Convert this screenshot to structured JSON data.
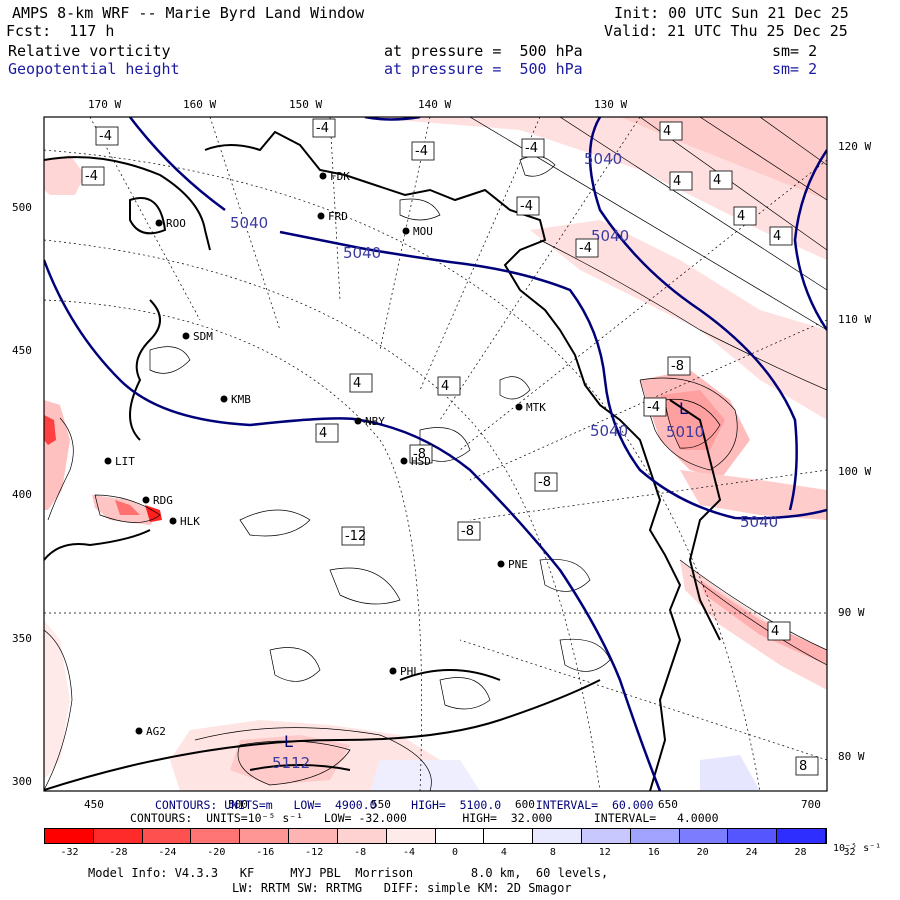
{
  "header": {
    "title": "AMPS 8-km WRF -- Marie Byrd Land Window",
    "init": "Init: 00 UTC Sun 21 Dec 25",
    "fcst": "Fcst:  117 h",
    "valid": "Valid: 21 UTC Thu 25 Dec 25",
    "field1_name": "Relative vorticity",
    "field1_level": "at pressure =  500 hPa",
    "field1_sm": "sm= 2",
    "field2_name": "Geopotential height",
    "field2_level": "at pressure =  500 hPa",
    "field2_sm": "sm= 2"
  },
  "map": {
    "lon_labels_top": [
      "170 W",
      "160 W",
      "150 W",
      "140 W",
      "130 W"
    ],
    "lon_labels_right": [
      "120 W",
      "110 W",
      "100 W",
      "90 W",
      "80 W"
    ],
    "y_ticks": [
      "500",
      "450",
      "400",
      "350",
      "300"
    ],
    "x_ticks": [
      "450",
      "500",
      "550",
      "600",
      "650",
      "700"
    ],
    "stations": [
      "ROO",
      "FDK",
      "FRD",
      "MOU",
      "SDM",
      "KMB",
      "NBY",
      "MTK",
      "HSD",
      "LIT",
      "RDG",
      "HLK",
      "PNE",
      "PHL",
      "AG2"
    ],
    "height_labels": [
      "5040",
      "5040",
      "5040",
      "5040",
      "5040",
      "5040",
      "5010",
      "5112"
    ],
    "low_label": "L",
    "vorticity_labels": [
      "-4",
      "-4",
      "-4",
      "-4",
      "-4",
      "-4",
      "-4",
      "4",
      "4",
      "4",
      "4",
      "4",
      "4",
      "4",
      "4",
      "-8",
      "-8",
      "-12",
      "-8",
      "-8",
      "-4",
      "4",
      "8"
    ]
  },
  "footer": {
    "contours1": "CONTOURS: UNITS=m   LOW=  4900.0     HIGH=  5100.0     INTERVAL=  60.000",
    "contours2": "CONTOURS:  UNITS=10⁻⁵ s⁻¹   LOW= -32.000        HIGH=  32.000      INTERVAL=   4.0000",
    "model1": "Model Info: V4.3.3   KF     MYJ PBL  Morrison        8.0 km,  60 levels,",
    "model2": "LW: RRTM SW: RRTMG   DIFF: simple KM: 2D Smagor"
  },
  "colorbar": {
    "labels": [
      "-32",
      "-28",
      "-24",
      "-20",
      "-16",
      "-12",
      "-8",
      "-4",
      "0",
      "4",
      "8",
      "12",
      "16",
      "20",
      "24",
      "28",
      "32"
    ],
    "units": "10⁻⁵ s⁻¹",
    "colors": [
      "#ff0000",
      "#ff2a2a",
      "#ff5050",
      "#ff7474",
      "#ff9696",
      "#ffb4b4",
      "#ffd2d2",
      "#ffeaea",
      "#ffffff",
      "#ffffff",
      "#e8e8ff",
      "#c8c8ff",
      "#a2a2ff",
      "#7c7cff",
      "#5656ff",
      "#2e2eff",
      "#0000ff"
    ]
  }
}
